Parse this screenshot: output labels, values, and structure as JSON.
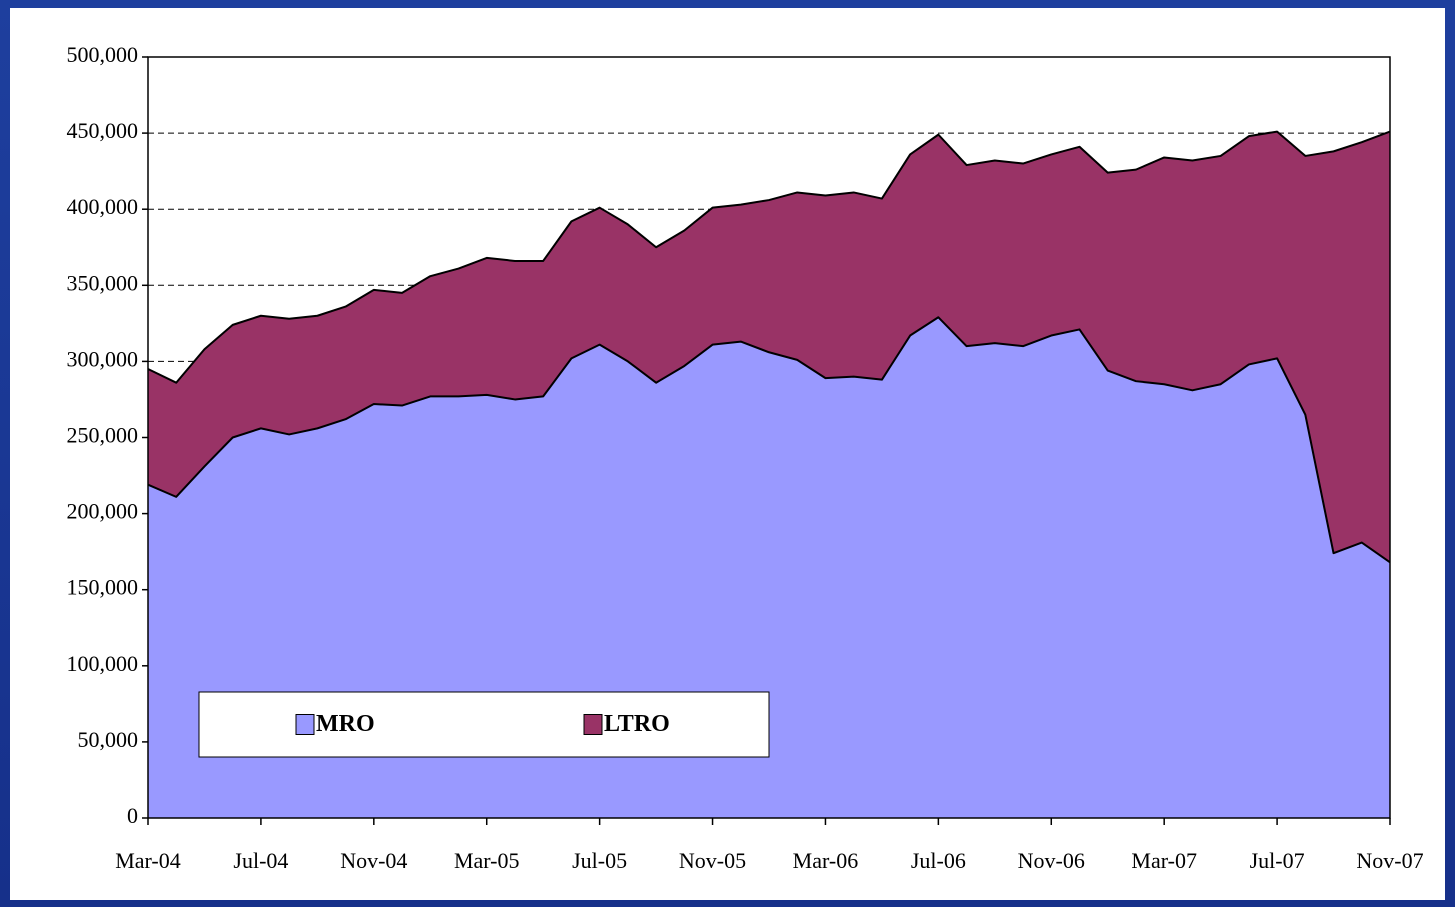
{
  "chart_data": {
    "type": "stacked-area",
    "categories": [
      "Mar-04",
      null,
      null,
      null,
      "Jul-04",
      null,
      null,
      null,
      "Nov-04",
      null,
      null,
      null,
      "Mar-05",
      null,
      null,
      null,
      "Jul-05",
      null,
      null,
      null,
      "Nov-05",
      null,
      null,
      null,
      "Mar-06",
      null,
      null,
      null,
      "Jul-06",
      null,
      null,
      null,
      "Nov-06",
      null,
      null,
      null,
      "Mar-07",
      null,
      null,
      null,
      "Jul-07",
      null,
      null,
      null,
      "Nov-07"
    ],
    "series": [
      {
        "name": "MRO",
        "color": "#9999ff",
        "values": [
          219000,
          211000,
          231000,
          250000,
          256000,
          252000,
          256000,
          262000,
          272000,
          271000,
          277000,
          277000,
          278000,
          275000,
          277000,
          302000,
          311000,
          300000,
          286000,
          297000,
          311000,
          313000,
          306000,
          301000,
          289000,
          290000,
          288000,
          317000,
          329000,
          310000,
          312000,
          310000,
          317000,
          321000,
          294000,
          287000,
          285000,
          281000,
          285000,
          298000,
          302000,
          265000,
          174000,
          181000,
          168000
        ]
      },
      {
        "name": "LTRO",
        "color": "#993366",
        "values": [
          76000,
          75000,
          77000,
          74000,
          74000,
          76000,
          74000,
          74000,
          75000,
          74000,
          79000,
          84000,
          90000,
          91000,
          89000,
          90000,
          90000,
          90000,
          89000,
          89000,
          90000,
          90000,
          100000,
          110000,
          120000,
          121000,
          119000,
          119000,
          120000,
          119000,
          120000,
          120000,
          119000,
          120000,
          130000,
          139000,
          149000,
          151000,
          150000,
          150000,
          149000,
          170000,
          264000,
          263000,
          283000
        ]
      }
    ],
    "ylim": [
      0,
      500000
    ],
    "yticks": [
      0,
      {
        "value": 50000,
        "label": "50,000"
      },
      {
        "value": 100000,
        "label": "100,000"
      },
      {
        "value": 150000,
        "label": "150,000"
      },
      {
        "value": 200000,
        "label": "200,000"
      },
      {
        "value": 250000,
        "label": "250,000"
      },
      {
        "value": 300000,
        "label": "300,000"
      },
      {
        "value": 350000,
        "label": "350,000"
      },
      {
        "value": 400000,
        "label": "400,000"
      },
      {
        "value": 450000,
        "label": "450,000"
      },
      {
        "value": 500000,
        "label": "500,000"
      }
    ],
    "grid": true,
    "legend": "lower left"
  }
}
